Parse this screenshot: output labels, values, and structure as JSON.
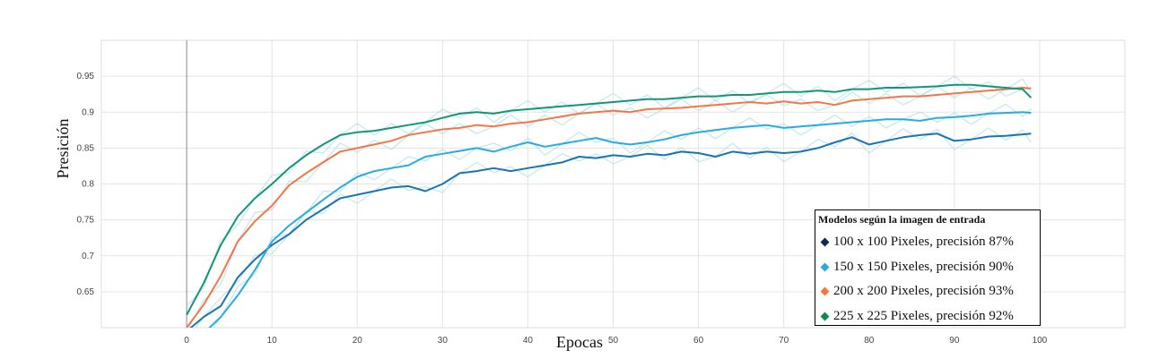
{
  "chart_data": {
    "type": "line",
    "xlabel": "Epocas",
    "ylabel": "Presición",
    "xlim": [
      -10,
      110
    ],
    "ylim": [
      0.6,
      1.0
    ],
    "xticks": [
      0,
      10,
      20,
      30,
      40,
      50,
      60,
      70,
      80,
      90,
      100
    ],
    "yticks": [
      0.65,
      0.7,
      0.75,
      0.8,
      0.85,
      0.9,
      0.95
    ],
    "grid": true,
    "legend": {
      "title": "Modelos según la imagen de entrada",
      "position": "bottom-right"
    },
    "series": [
      {
        "name": "100 x 100 Pixeles, precisión 87%",
        "color": "#1a73b3",
        "marker_color": "#0d2a52",
        "x": [
          0,
          2,
          4,
          6,
          8,
          10,
          12,
          14,
          16,
          18,
          20,
          22,
          24,
          26,
          28,
          30,
          32,
          34,
          36,
          38,
          40,
          42,
          44,
          46,
          48,
          50,
          52,
          54,
          56,
          58,
          60,
          62,
          64,
          66,
          68,
          70,
          72,
          74,
          76,
          78,
          80,
          82,
          84,
          86,
          88,
          90,
          92,
          94,
          96,
          98,
          99
        ],
        "values": [
          0.595,
          0.615,
          0.63,
          0.67,
          0.695,
          0.715,
          0.73,
          0.75,
          0.765,
          0.78,
          0.785,
          0.79,
          0.795,
          0.797,
          0.79,
          0.8,
          0.815,
          0.818,
          0.822,
          0.818,
          0.822,
          0.826,
          0.83,
          0.838,
          0.836,
          0.84,
          0.838,
          0.842,
          0.84,
          0.845,
          0.843,
          0.838,
          0.845,
          0.842,
          0.845,
          0.843,
          0.845,
          0.85,
          0.858,
          0.865,
          0.855,
          0.86,
          0.865,
          0.868,
          0.87,
          0.86,
          0.862,
          0.866,
          0.867,
          0.869,
          0.87
        ]
      },
      {
        "name": "150 x 150 Pixeles, precisión 90%",
        "color": "#29abe2",
        "marker_color": "#29abe2",
        "x": [
          0,
          2,
          4,
          6,
          8,
          10,
          12,
          14,
          16,
          18,
          20,
          22,
          24,
          26,
          28,
          30,
          32,
          34,
          36,
          38,
          40,
          42,
          44,
          46,
          48,
          50,
          52,
          54,
          56,
          58,
          60,
          62,
          64,
          66,
          68,
          70,
          72,
          74,
          76,
          78,
          80,
          82,
          84,
          86,
          88,
          90,
          92,
          94,
          96,
          98,
          99
        ],
        "values": [
          0.58,
          0.592,
          0.615,
          0.645,
          0.68,
          0.72,
          0.742,
          0.76,
          0.778,
          0.795,
          0.81,
          0.818,
          0.822,
          0.826,
          0.838,
          0.842,
          0.846,
          0.85,
          0.845,
          0.852,
          0.858,
          0.852,
          0.856,
          0.86,
          0.864,
          0.858,
          0.855,
          0.858,
          0.862,
          0.868,
          0.872,
          0.875,
          0.878,
          0.88,
          0.882,
          0.878,
          0.88,
          0.882,
          0.884,
          0.886,
          0.888,
          0.89,
          0.89,
          0.888,
          0.892,
          0.893,
          0.895,
          0.898,
          0.899,
          0.9,
          0.899
        ]
      },
      {
        "name": "200 x 200 Pixeles, precisión 93%",
        "color": "#f07848",
        "marker_color": "#f07848",
        "x": [
          0,
          2,
          4,
          6,
          8,
          10,
          12,
          14,
          16,
          18,
          20,
          22,
          24,
          26,
          28,
          30,
          32,
          34,
          36,
          38,
          40,
          42,
          44,
          46,
          48,
          50,
          52,
          54,
          56,
          58,
          60,
          62,
          64,
          66,
          68,
          70,
          72,
          74,
          76,
          78,
          80,
          82,
          84,
          86,
          88,
          90,
          92,
          94,
          96,
          98,
          99
        ],
        "values": [
          0.6,
          0.632,
          0.672,
          0.72,
          0.748,
          0.77,
          0.798,
          0.815,
          0.83,
          0.845,
          0.85,
          0.855,
          0.86,
          0.868,
          0.872,
          0.876,
          0.878,
          0.882,
          0.88,
          0.884,
          0.886,
          0.89,
          0.894,
          0.898,
          0.9,
          0.902,
          0.9,
          0.904,
          0.905,
          0.906,
          0.908,
          0.91,
          0.912,
          0.914,
          0.912,
          0.915,
          0.912,
          0.914,
          0.91,
          0.916,
          0.918,
          0.92,
          0.922,
          0.922,
          0.924,
          0.926,
          0.928,
          0.93,
          0.932,
          0.934,
          0.933
        ]
      },
      {
        "name": "225 x 225 Pixeles, precisión 92%",
        "color": "#12957a",
        "marker_color": "#0e8c4e",
        "x": [
          0,
          2,
          4,
          6,
          8,
          10,
          12,
          14,
          16,
          18,
          20,
          22,
          24,
          26,
          28,
          30,
          32,
          34,
          36,
          38,
          40,
          42,
          44,
          46,
          48,
          50,
          52,
          54,
          56,
          58,
          60,
          62,
          64,
          66,
          68,
          70,
          72,
          74,
          76,
          78,
          80,
          82,
          84,
          86,
          88,
          90,
          92,
          94,
          96,
          98,
          99
        ],
        "values": [
          0.618,
          0.662,
          0.715,
          0.755,
          0.78,
          0.8,
          0.822,
          0.84,
          0.855,
          0.868,
          0.872,
          0.874,
          0.878,
          0.882,
          0.886,
          0.892,
          0.898,
          0.9,
          0.898,
          0.902,
          0.904,
          0.906,
          0.908,
          0.91,
          0.912,
          0.914,
          0.916,
          0.918,
          0.918,
          0.92,
          0.922,
          0.922,
          0.924,
          0.924,
          0.926,
          0.928,
          0.928,
          0.93,
          0.928,
          0.932,
          0.932,
          0.934,
          0.934,
          0.935,
          0.936,
          0.938,
          0.938,
          0.936,
          0.934,
          0.932,
          0.92
        ]
      }
    ]
  }
}
